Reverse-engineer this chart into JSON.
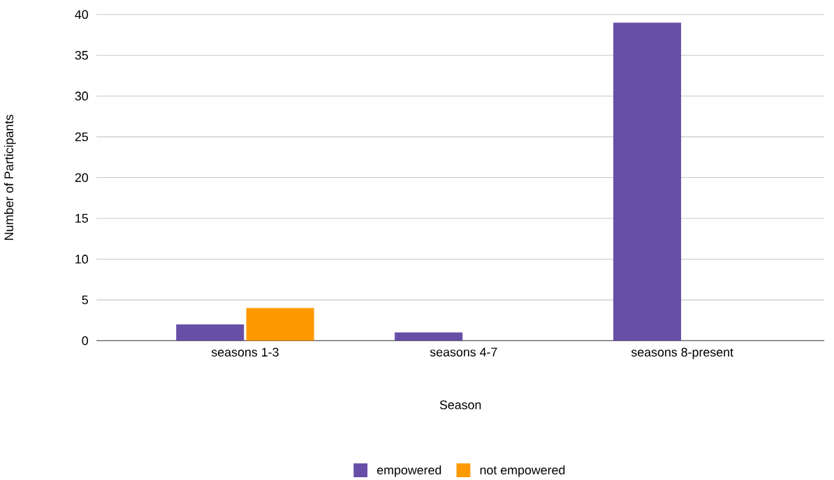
{
  "chart_data": {
    "type": "bar",
    "xlabel": "Season",
    "ylabel": "Number of Participants",
    "categories": [
      "seasons 1-3",
      "seasons 4-7",
      "seasons 8-present"
    ],
    "series": [
      {
        "name": "empowered",
        "color": "#674ea7",
        "values": [
          2,
          1,
          39
        ]
      },
      {
        "name": "not empowered",
        "color": "#ff9900",
        "values": [
          4,
          0,
          0
        ]
      }
    ],
    "ylim": [
      0,
      40
    ],
    "yticks": [
      0,
      5,
      10,
      15,
      20,
      25,
      30,
      35,
      40
    ],
    "grid": "y",
    "legend": "bottom"
  }
}
